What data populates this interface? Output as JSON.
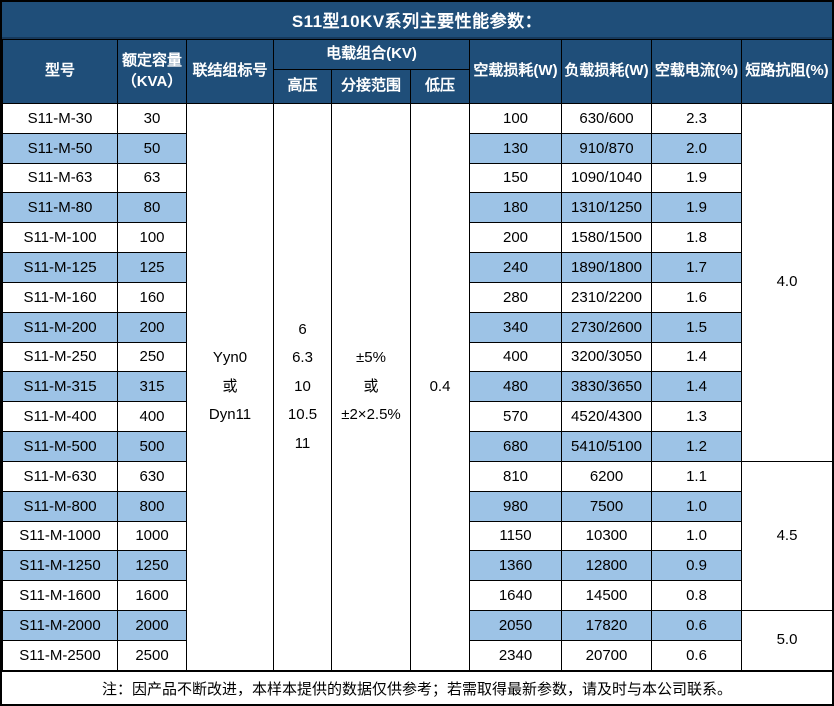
{
  "title": "S11型10KV系列主要性能参数：",
  "header": {
    "model": "型号",
    "capacity": "额定容量\n（KVA）",
    "connection": "联结组标号",
    "voltage_group": "电载组合(KV)",
    "hv": "高压",
    "tap_range": "分接范围",
    "lv": "低压",
    "no_load_loss": "空载损耗(W)",
    "load_loss": "负载损耗(W)",
    "no_load_current": "空载电流(%)",
    "impedance": "短路抗阻(%)"
  },
  "merged": {
    "connection": "Yyn0\n或\nDyn11",
    "hv": "6\n6.3\n10\n10.5\n11",
    "tap_range": "±5%\n或\n±2×2.5%",
    "lv": "0.4"
  },
  "impedance_groups": [
    {
      "value": "4.0",
      "rows": 12
    },
    {
      "value": "4.5",
      "rows": 5
    },
    {
      "value": "5.0",
      "rows": 2
    }
  ],
  "rows": [
    {
      "model": "S11-M-30",
      "capacity": "30",
      "no_load_loss": "100",
      "load_loss": "630/600",
      "no_load_current": "2.3"
    },
    {
      "model": "S11-M-50",
      "capacity": "50",
      "no_load_loss": "130",
      "load_loss": "910/870",
      "no_load_current": "2.0"
    },
    {
      "model": "S11-M-63",
      "capacity": "63",
      "no_load_loss": "150",
      "load_loss": "1090/1040",
      "no_load_current": "1.9"
    },
    {
      "model": "S11-M-80",
      "capacity": "80",
      "no_load_loss": "180",
      "load_loss": "1310/1250",
      "no_load_current": "1.9"
    },
    {
      "model": "S11-M-100",
      "capacity": "100",
      "no_load_loss": "200",
      "load_loss": "1580/1500",
      "no_load_current": "1.8"
    },
    {
      "model": "S11-M-125",
      "capacity": "125",
      "no_load_loss": "240",
      "load_loss": "1890/1800",
      "no_load_current": "1.7"
    },
    {
      "model": "S11-M-160",
      "capacity": "160",
      "no_load_loss": "280",
      "load_loss": "2310/2200",
      "no_load_current": "1.6"
    },
    {
      "model": "S11-M-200",
      "capacity": "200",
      "no_load_loss": "340",
      "load_loss": "2730/2600",
      "no_load_current": "1.5"
    },
    {
      "model": "S11-M-250",
      "capacity": "250",
      "no_load_loss": "400",
      "load_loss": "3200/3050",
      "no_load_current": "1.4"
    },
    {
      "model": "S11-M-315",
      "capacity": "315",
      "no_load_loss": "480",
      "load_loss": "3830/3650",
      "no_load_current": "1.4"
    },
    {
      "model": "S11-M-400",
      "capacity": "400",
      "no_load_loss": "570",
      "load_loss": "4520/4300",
      "no_load_current": "1.3"
    },
    {
      "model": "S11-M-500",
      "capacity": "500",
      "no_load_loss": "680",
      "load_loss": "5410/5100",
      "no_load_current": "1.2"
    },
    {
      "model": "S11-M-630",
      "capacity": "630",
      "no_load_loss": "810",
      "load_loss": "6200",
      "no_load_current": "1.1"
    },
    {
      "model": "S11-M-800",
      "capacity": "800",
      "no_load_loss": "980",
      "load_loss": "7500",
      "no_load_current": "1.0"
    },
    {
      "model": "S11-M-1000",
      "capacity": "1000",
      "no_load_loss": "1150",
      "load_loss": "10300",
      "no_load_current": "1.0"
    },
    {
      "model": "S11-M-1250",
      "capacity": "1250",
      "no_load_loss": "1360",
      "load_loss": "12800",
      "no_load_current": "0.9"
    },
    {
      "model": "S11-M-1600",
      "capacity": "1600",
      "no_load_loss": "1640",
      "load_loss": "14500",
      "no_load_current": "0.8"
    },
    {
      "model": "S11-M-2000",
      "capacity": "2000",
      "no_load_loss": "2050",
      "load_loss": "17820",
      "no_load_current": "0.6"
    },
    {
      "model": "S11-M-2500",
      "capacity": "2500",
      "no_load_loss": "2340",
      "load_loss": "20700",
      "no_load_current": "0.6"
    }
  ],
  "note": "注：因产品不断改进，本样本提供的数据仅供参考；若需取得最新参数，请及时与本公司联系。",
  "colors": {
    "header_bg": "#1F4E79",
    "alt_row_bg": "#9DC3E6",
    "row_bg": "#FFFFFF",
    "border": "#000000",
    "header_text": "#FFFFFF",
    "text": "#000000"
  }
}
